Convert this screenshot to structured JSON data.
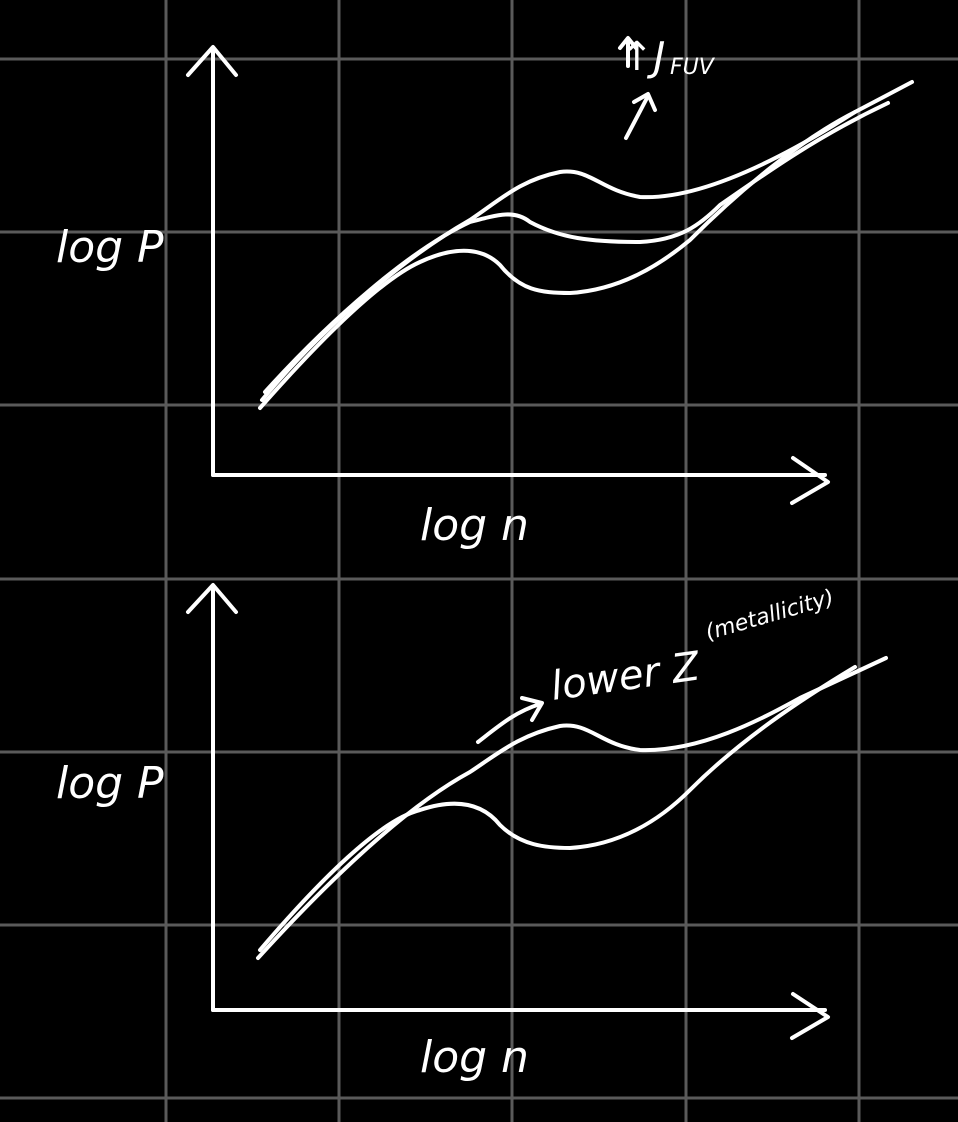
{
  "colors": {
    "background": "#000000",
    "grid": "#5a5a5a",
    "ink": "#ffffff"
  },
  "top_panel": {
    "y_axis_label": "log P",
    "x_axis_label": "log n",
    "annotation_arrow_text": "↑J",
    "annotation_subscript": "FUV"
  },
  "bottom_panel": {
    "y_axis_label": "log P",
    "x_axis_label": "log n",
    "annotation_text": "lower Z",
    "annotation_note": "(metallicity)"
  }
}
